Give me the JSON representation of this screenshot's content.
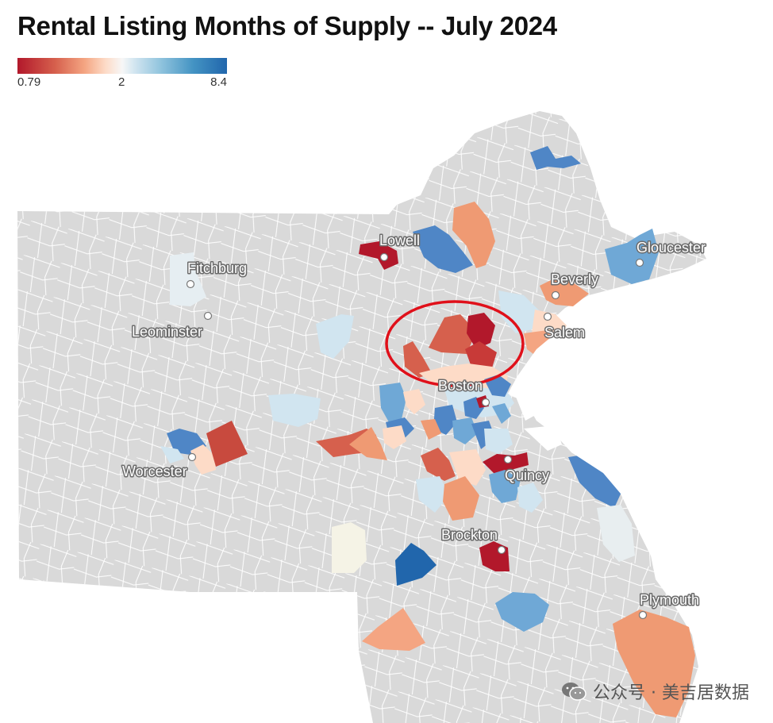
{
  "title": "Rental Listing Months of Supply -- July 2024",
  "legend": {
    "min": "0.79",
    "mid": "2",
    "max": "8.4"
  },
  "cities": [
    {
      "name": "Lowell"
    },
    {
      "name": "Fitchburg"
    },
    {
      "name": "Leominster"
    },
    {
      "name": "Gloucester"
    },
    {
      "name": "Beverly"
    },
    {
      "name": "Salem"
    },
    {
      "name": "Boston"
    },
    {
      "name": "Worcester"
    },
    {
      "name": "Quincy"
    },
    {
      "name": "Brockton"
    },
    {
      "name": "Plymouth"
    }
  ],
  "colors": {
    "land": "#d9d9d9",
    "border": "#ffffff",
    "water": "#ffffff",
    "dark_red": "#b2182b",
    "red": "#d6604d",
    "orange": "#ef9a73",
    "light_orange": "#fddbc7",
    "light_blue": "#d1e5f0",
    "mid_blue": "#6fa8d6",
    "blue": "#4f86c6",
    "dark_blue": "#2166ac",
    "cream": "#f5f3e6",
    "annotation": "#e0101a"
  },
  "watermark": {
    "text": "公众号 · 美吉居数据",
    "icon": "wechat-icon"
  }
}
